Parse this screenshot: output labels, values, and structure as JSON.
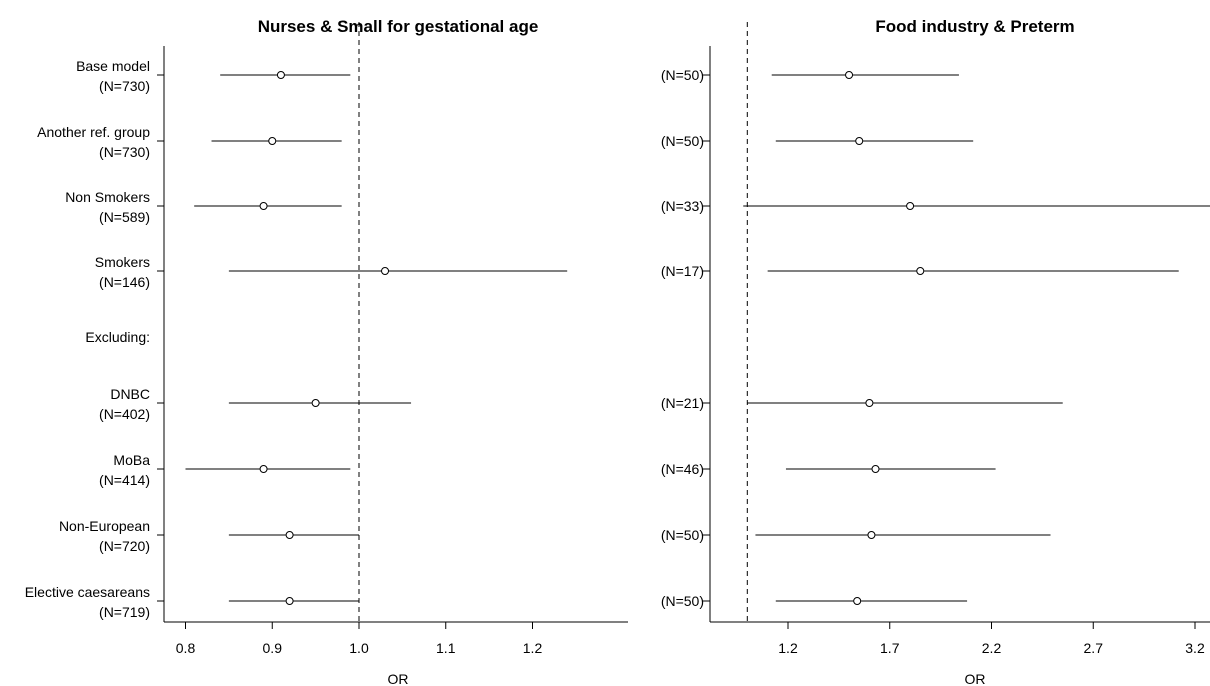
{
  "chart_data": [
    {
      "type": "forest",
      "title": "Nurses & Small for gestational age",
      "xlabel": "OR",
      "xlim": [
        0.79,
        1.26
      ],
      "xticks": [
        0.8,
        0.9,
        1.0,
        1.1,
        1.2
      ],
      "xtick_labels": [
        "0.8",
        "0.9",
        "1.0",
        "1.1",
        "1.2"
      ],
      "reference_line": 1.0,
      "rows": [
        {
          "name": "Base model",
          "n": "(N=730)",
          "or": 0.91,
          "lo": 0.84,
          "hi": 0.99
        },
        {
          "name": "Another ref. group",
          "n": "(N=730)",
          "or": 0.9,
          "lo": 0.83,
          "hi": 0.98
        },
        {
          "name": "Non Smokers",
          "n": "(N=589)",
          "or": 0.89,
          "lo": 0.81,
          "hi": 0.98
        },
        {
          "name": "Smokers",
          "n": "(N=146)",
          "or": 1.03,
          "lo": 0.85,
          "hi": 1.24
        },
        {
          "name": "Excluding:",
          "header": true
        },
        {
          "name": "DNBC",
          "n": "(N=402)",
          "or": 0.95,
          "lo": 0.85,
          "hi": 1.06
        },
        {
          "name": "MoBa",
          "n": "(N=414)",
          "or": 0.89,
          "lo": 0.8,
          "hi": 0.99
        },
        {
          "name": "Non-European",
          "n": "(N=720)",
          "or": 0.92,
          "lo": 0.85,
          "hi": 1.0
        },
        {
          "name": "Elective caesareans",
          "n": "(N=719)",
          "or": 0.92,
          "lo": 0.85,
          "hi": 1.0
        }
      ]
    },
    {
      "type": "forest",
      "title": "Food industry & Preterm",
      "xlabel": "OR",
      "xlim": [
        0.95,
        3.3
      ],
      "xticks": [
        1.2,
        1.7,
        2.2,
        2.7,
        3.2
      ],
      "xtick_labels": [
        "1.2",
        "1.7",
        "2.2",
        "2.7",
        "3.2"
      ],
      "reference_line": 1.0,
      "rows": [
        {
          "n": "(N=50)",
          "or": 1.5,
          "lo": 1.12,
          "hi": 2.04
        },
        {
          "n": "(N=50)",
          "or": 1.55,
          "lo": 1.14,
          "hi": 2.11
        },
        {
          "n": "(N=33)",
          "or": 1.8,
          "lo": 0.98,
          "hi": 3.3
        },
        {
          "n": "(N=17)",
          "or": 1.85,
          "lo": 1.1,
          "hi": 3.12
        },
        {
          "header": true
        },
        {
          "n": "(N=21)",
          "or": 1.6,
          "lo": 1.0,
          "hi": 2.55
        },
        {
          "n": "(N=46)",
          "or": 1.63,
          "lo": 1.19,
          "hi": 2.22
        },
        {
          "n": "(N=50)",
          "or": 1.61,
          "lo": 1.04,
          "hi": 2.49
        },
        {
          "n": "(N=50)",
          "or": 1.54,
          "lo": 1.14,
          "hi": 2.08
        }
      ]
    }
  ]
}
